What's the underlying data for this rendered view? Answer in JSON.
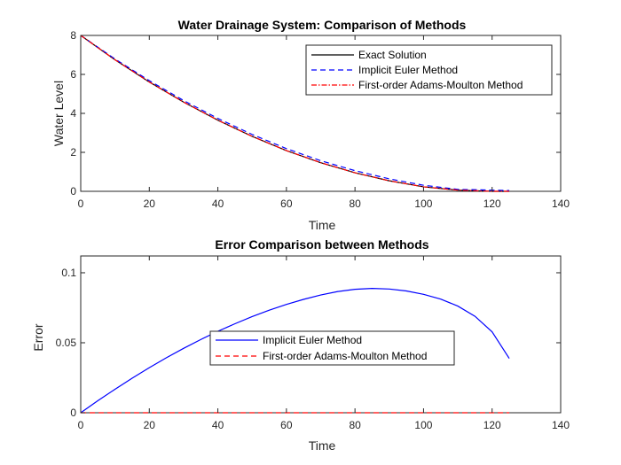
{
  "chart_data": [
    {
      "type": "line",
      "title": "Water Drainage System: Comparison of Methods",
      "xlabel": "Time",
      "ylabel": "Water Level",
      "xlim": [
        0,
        140
      ],
      "ylim": [
        0,
        8
      ],
      "xticks": [
        0,
        20,
        40,
        60,
        80,
        100,
        120,
        140
      ],
      "yticks": [
        0,
        2,
        4,
        6,
        8
      ],
      "grid": false,
      "legend": "top-right",
      "series": [
        {
          "name": "Exact Solution",
          "color": "#000000",
          "style": "solid",
          "x": [
            0,
            10,
            20,
            30,
            40,
            50,
            60,
            70,
            80,
            90,
            100,
            110,
            120,
            125
          ],
          "y": [
            8,
            6.75,
            5.61,
            4.58,
            3.65,
            2.82,
            2.09,
            1.47,
            0.95,
            0.54,
            0.23,
            0.06,
            0.0,
            0.0
          ]
        },
        {
          "name": "Implicit Euler Method",
          "color": "#0000ff",
          "style": "dashed",
          "x": [
            0,
            10,
            20,
            30,
            40,
            50,
            60,
            70,
            80,
            90,
            100,
            110,
            120,
            125
          ],
          "y": [
            8,
            6.79,
            5.68,
            4.66,
            3.74,
            2.92,
            2.19,
            1.57,
            1.06,
            0.64,
            0.31,
            0.1,
            0.06,
            0.04
          ]
        },
        {
          "name": "First-order Adams-Moulton Method",
          "color": "#ff0000",
          "style": "dashdot",
          "x": [
            0,
            10,
            20,
            30,
            40,
            50,
            60,
            70,
            80,
            90,
            100,
            110,
            120,
            125
          ],
          "y": [
            8,
            6.75,
            5.61,
            4.58,
            3.65,
            2.82,
            2.09,
            1.47,
            0.95,
            0.54,
            0.23,
            0.06,
            0.0,
            0.0
          ]
        }
      ]
    },
    {
      "type": "line",
      "title": "Error Comparison between Methods",
      "xlabel": "Time",
      "ylabel": "Error",
      "xlim": [
        0,
        140
      ],
      "ylim": [
        0,
        0.112
      ],
      "xticks": [
        0,
        20,
        40,
        60,
        80,
        100,
        120,
        140
      ],
      "yticks": [
        0,
        0.05,
        0.1
      ],
      "ytick_labels": [
        "0",
        "0.05",
        "0.1"
      ],
      "grid": false,
      "legend": "center",
      "series": [
        {
          "name": "Implicit Euler Method",
          "color": "#0000ff",
          "style": "solid",
          "x": [
            0,
            5,
            10,
            15,
            20,
            25,
            30,
            35,
            40,
            45,
            50,
            55,
            60,
            65,
            70,
            75,
            80,
            85,
            90,
            95,
            100,
            105,
            110,
            115,
            120,
            125
          ],
          "y": [
            0,
            0.0086,
            0.0168,
            0.0247,
            0.0322,
            0.0393,
            0.046,
            0.0523,
            0.0582,
            0.0636,
            0.0687,
            0.0733,
            0.0774,
            0.081,
            0.0841,
            0.0866,
            0.0882,
            0.0888,
            0.0884,
            0.087,
            0.0846,
            0.0812,
            0.0762,
            0.0689,
            0.0578,
            0.0388
          ]
        },
        {
          "name": "First-order Adams-Moulton Method",
          "color": "#ff0000",
          "style": "dashed",
          "x": [
            0,
            125
          ],
          "y": [
            0,
            0
          ]
        }
      ]
    }
  ]
}
